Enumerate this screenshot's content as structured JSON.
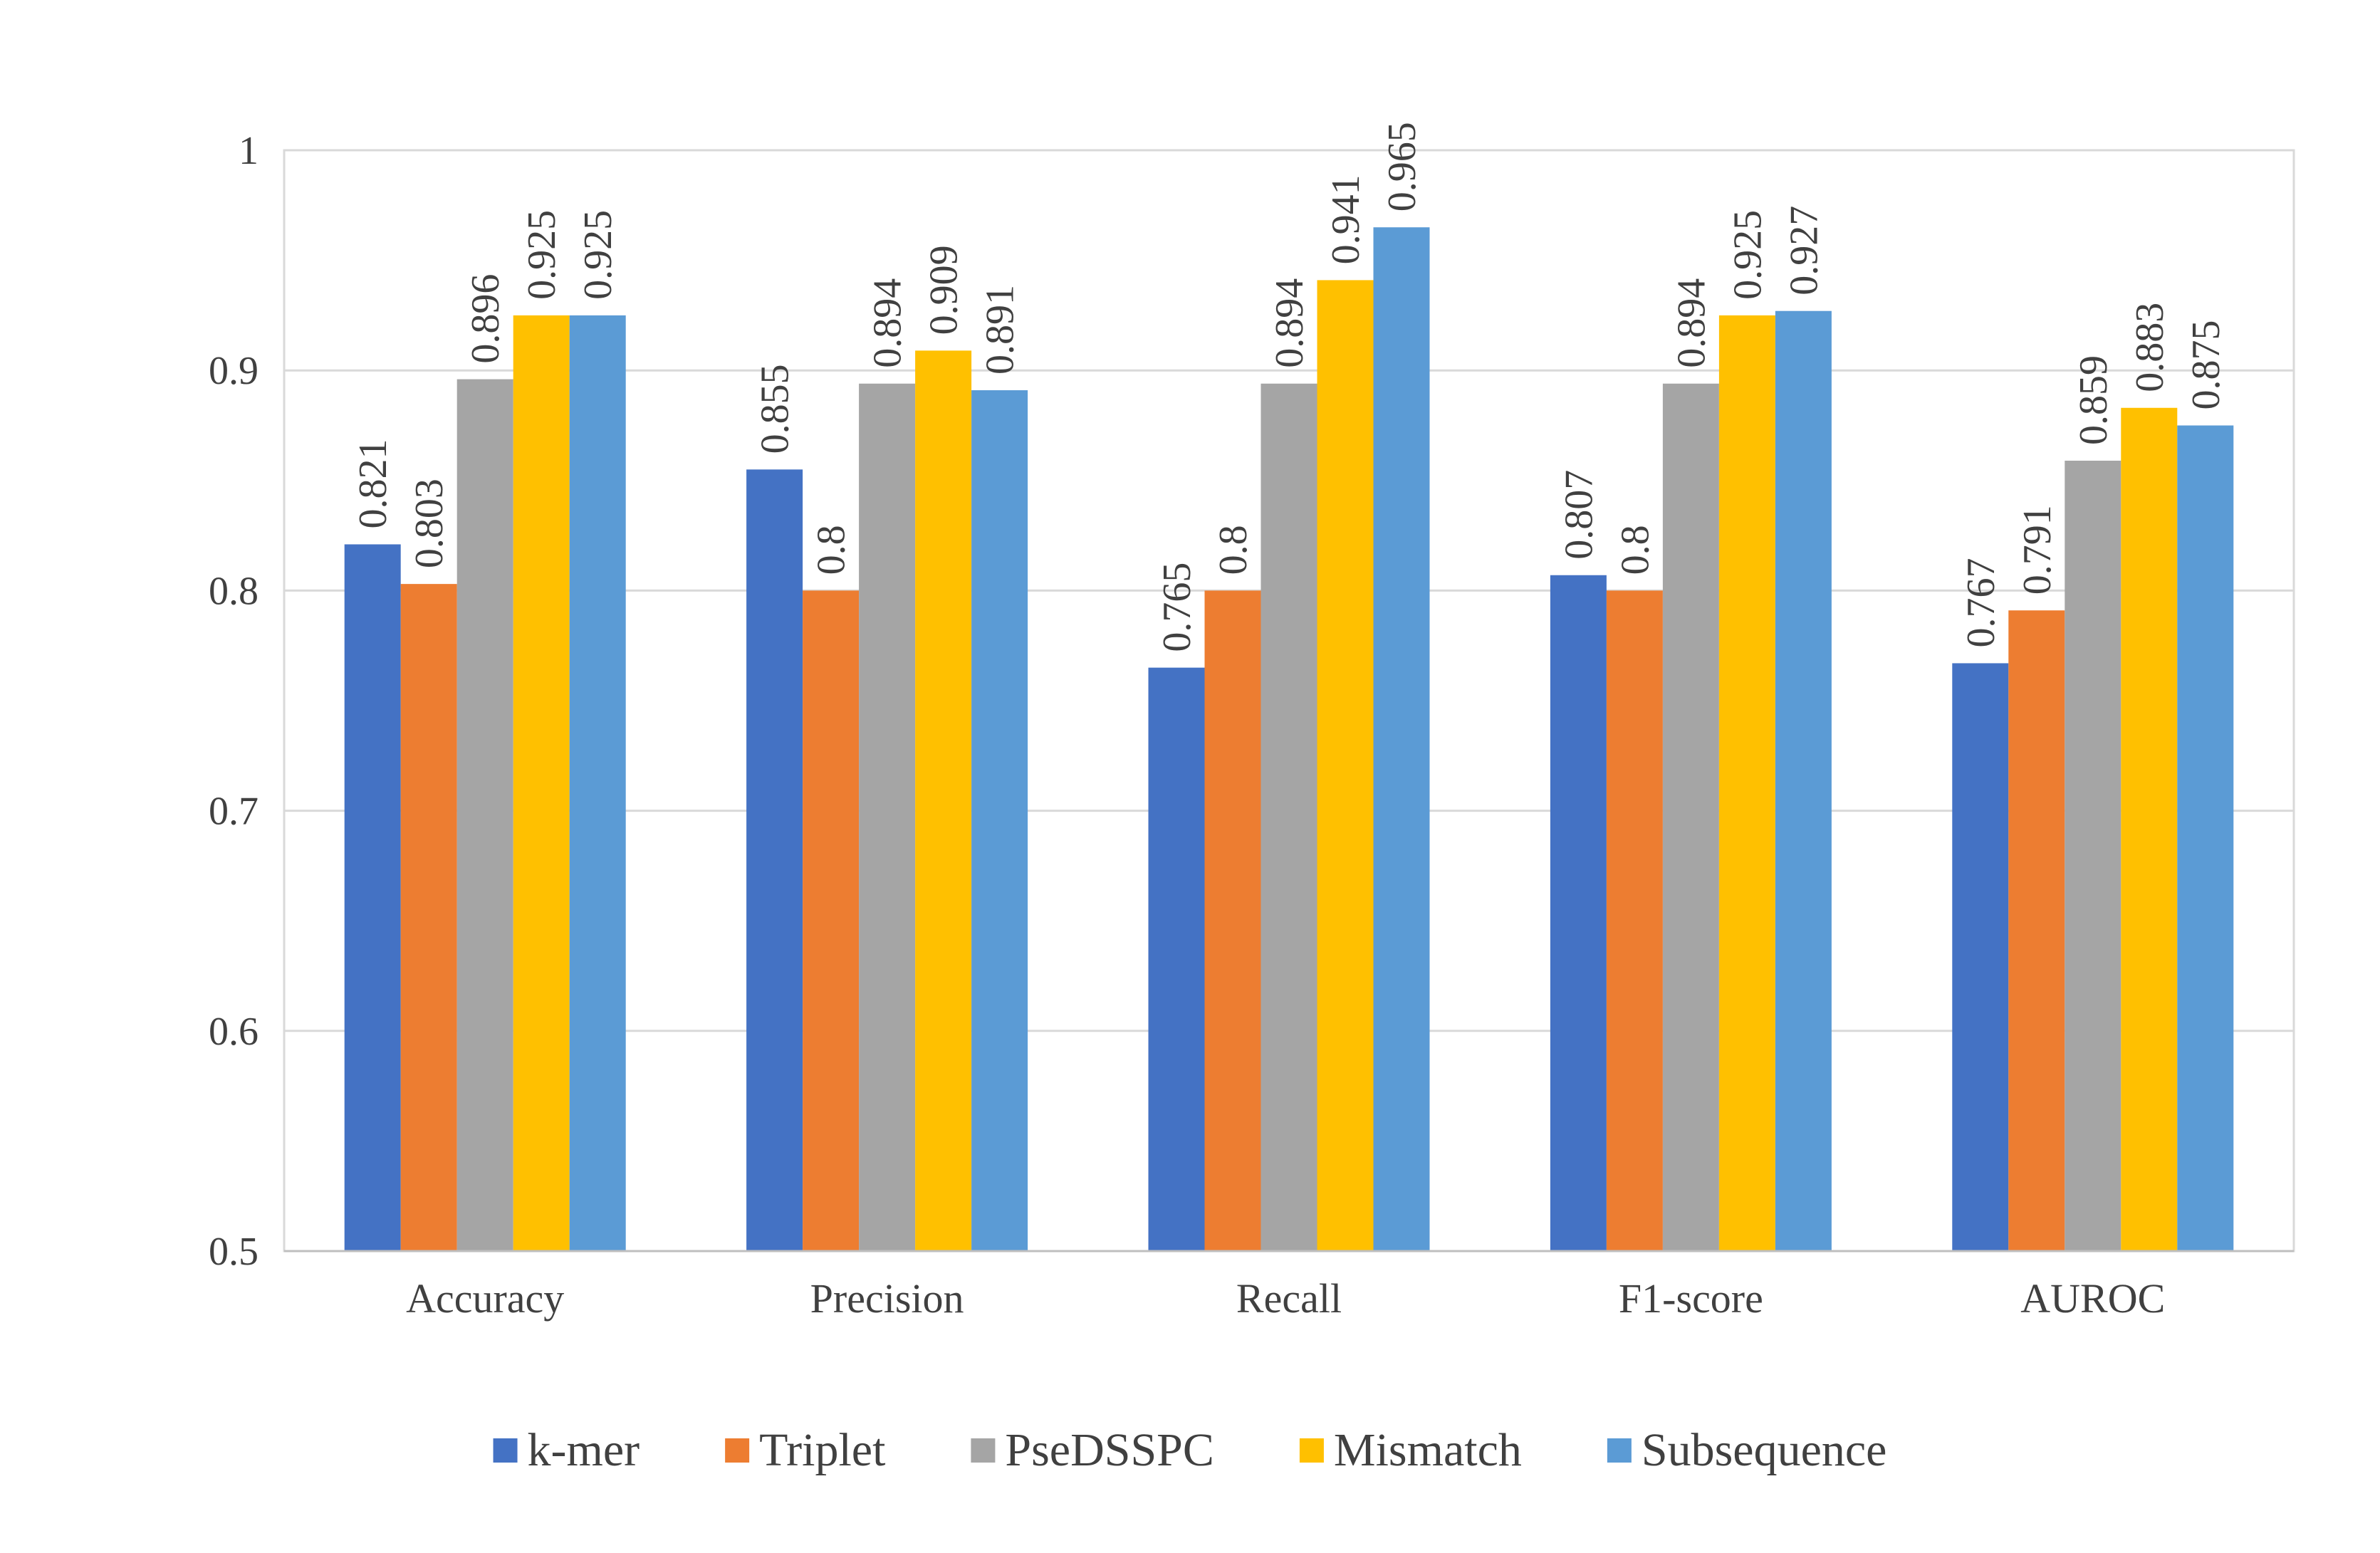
{
  "chart_data": {
    "type": "bar",
    "title": "",
    "xlabel": "",
    "ylabel": "",
    "ylim": [
      0.5,
      1
    ],
    "yticks": [
      0.5,
      0.6,
      0.7,
      0.8,
      0.9,
      1
    ],
    "ytick_labels": [
      "0.5",
      "0.6",
      "0.7",
      "0.8",
      "0.9",
      "1"
    ],
    "grid": true,
    "legend_position": "bottom",
    "categories": [
      "Accuracy",
      "Precision",
      "Recall",
      "F1-score",
      "AUROC"
    ],
    "series": [
      {
        "name": "k-mer",
        "color": "#4472c4",
        "values": [
          0.821,
          0.855,
          0.765,
          0.807,
          0.767
        ],
        "labels": [
          "0.821",
          "0.855",
          "0.765",
          "0.807",
          "0.767"
        ]
      },
      {
        "name": "Triplet",
        "color": "#ed7d31",
        "values": [
          0.803,
          0.8,
          0.8,
          0.8,
          0.791
        ],
        "labels": [
          "0.803",
          "0.8",
          "0.8",
          "0.8",
          "0.791"
        ]
      },
      {
        "name": "PseDSSPC",
        "color": "#a5a5a5",
        "values": [
          0.896,
          0.894,
          0.894,
          0.894,
          0.859
        ],
        "labels": [
          "0.896",
          "0.894",
          "0.894",
          "0.894",
          "0.859"
        ]
      },
      {
        "name": "Mismatch",
        "color": "#ffc000",
        "values": [
          0.925,
          0.909,
          0.941,
          0.925,
          0.883
        ],
        "labels": [
          "0.925",
          "0.909",
          "0.941",
          "0.925",
          "0.883"
        ]
      },
      {
        "name": "Subsequence",
        "color": "#5b9bd5",
        "values": [
          0.925,
          0.891,
          0.965,
          0.927,
          0.875
        ],
        "labels": [
          "0.925",
          "0.891",
          "0.965",
          "0.927",
          "0.875"
        ]
      }
    ]
  }
}
